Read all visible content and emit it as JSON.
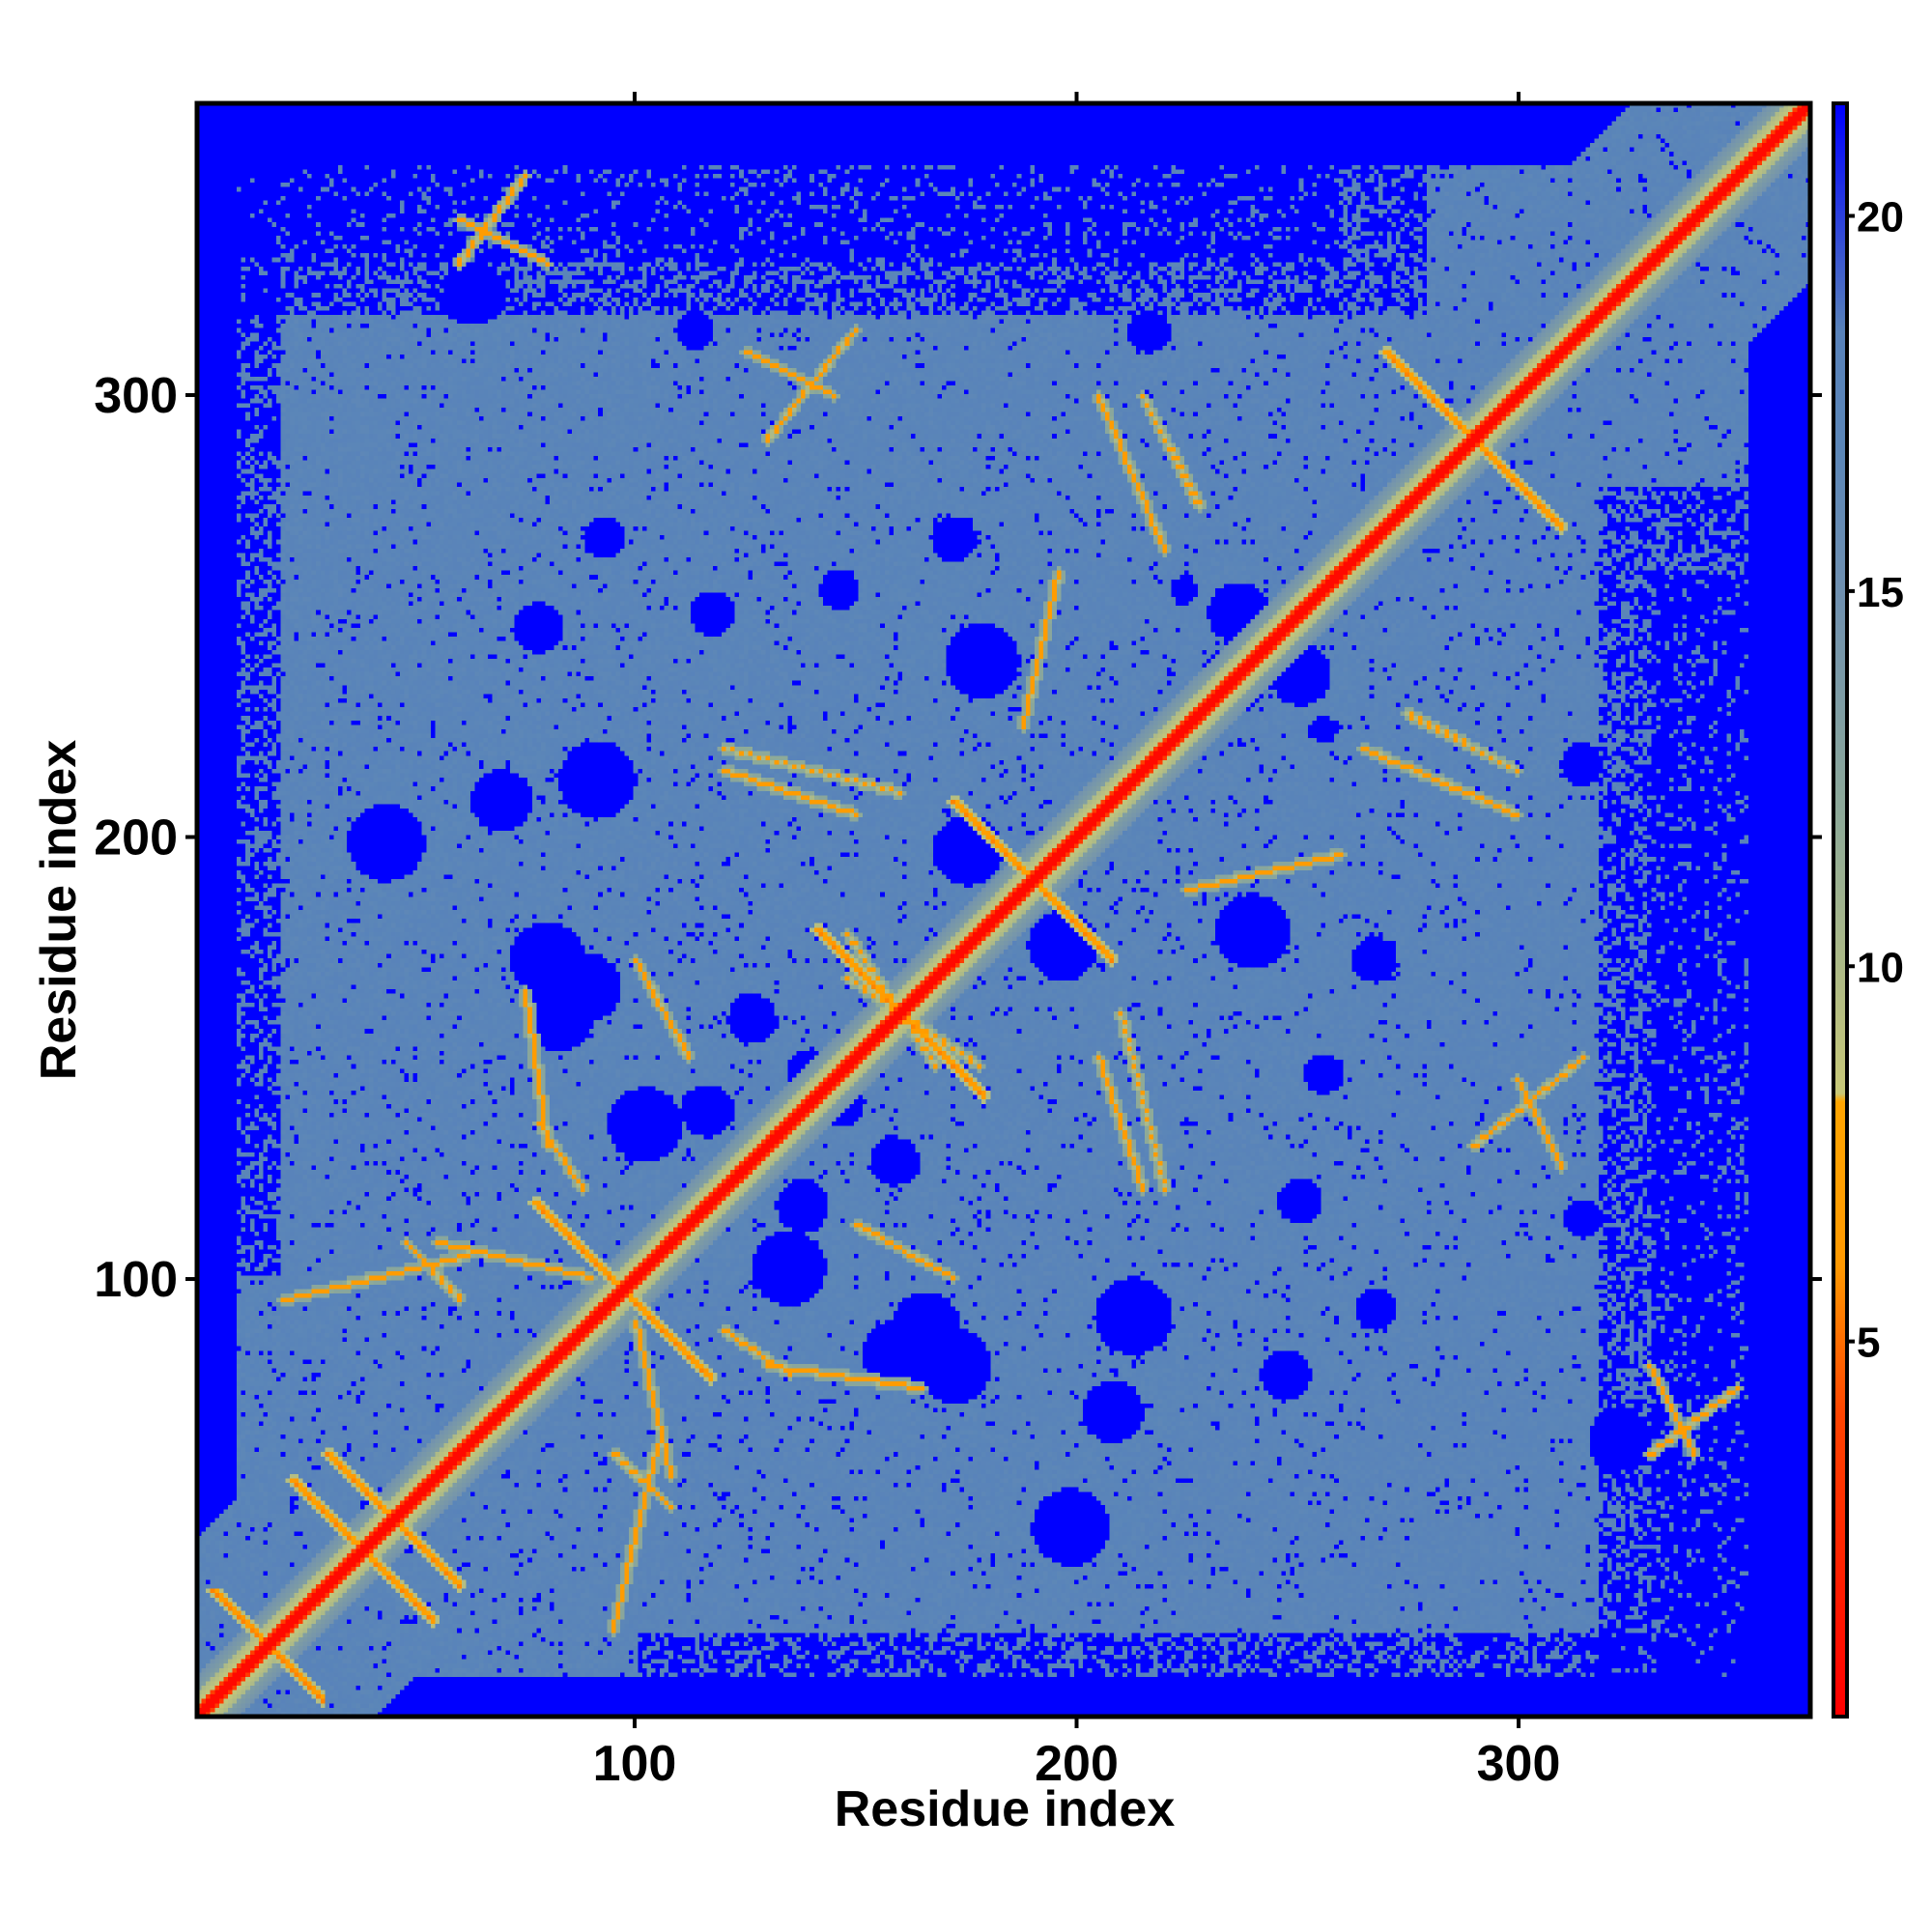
{
  "chart_data": {
    "type": "heatmap",
    "title": "",
    "xlabel": "Residue index",
    "ylabel": "Residue index",
    "xlim": [
      1,
      366
    ],
    "ylim": [
      1,
      366
    ],
    "x_ticks": [
      100,
      200,
      300
    ],
    "y_ticks": [
      100,
      200,
      300
    ],
    "colorbar": {
      "ticks": [
        5,
        10,
        15,
        20
      ],
      "range": [
        0,
        21.5
      ],
      "stops": [
        {
          "value": 0,
          "color": "#ff0000"
        },
        {
          "value": 4,
          "color": "#ff4400"
        },
        {
          "value": 6,
          "color": "#ff9900"
        },
        {
          "value": 8.2,
          "color": "#ffa500"
        },
        {
          "value": 8.3,
          "color": "#c8c878"
        },
        {
          "value": 12,
          "color": "#8eaa98"
        },
        {
          "value": 15,
          "color": "#6f90b0"
        },
        {
          "value": 17,
          "color": "#5b86b8"
        },
        {
          "value": 18.5,
          "color": "#5882ba"
        },
        {
          "value": 21.5,
          "color": "#0000ff"
        }
      ]
    },
    "colors": {
      "far": "#0000ff",
      "mid": "#5a87ba",
      "contact": "#ff9900",
      "close": "#ff0000"
    },
    "diagonal_width_residues": 3,
    "contact_features": [
      {
        "type": "antiparallel",
        "center": [
          16,
          17
        ],
        "length": 24
      },
      {
        "type": "antiparallel",
        "center": [
          38,
          38
        ],
        "length": 32
      },
      {
        "type": "antiparallel",
        "center": [
          45,
          45
        ],
        "length": 30
      },
      {
        "type": "antiparallel",
        "center": [
          97,
          97
        ],
        "length": 40
      },
      {
        "type": "antiparallel",
        "center": [
          160,
          160
        ],
        "length": 38
      },
      {
        "type": "antiparallel",
        "center": [
          190,
          190
        ],
        "length": 36
      },
      {
        "type": "antiparallel",
        "center": [
          290,
          290
        ],
        "length": 40
      },
      {
        "type": "parallel",
        "from": [
          20,
          95
        ],
        "to": [
          62,
          105
        ]
      },
      {
        "type": "parallel",
        "from": [
          55,
          108
        ],
        "to": [
          90,
          100
        ]
      },
      {
        "type": "parallel",
        "from": [
          95,
          60
        ],
        "to": [
          108,
          48
        ]
      },
      {
        "type": "parallel",
        "from": [
          88,
          120
        ],
        "to": [
          78,
          135
        ]
      },
      {
        "type": "parallel",
        "from": [
          120,
          215
        ],
        "to": [
          150,
          205
        ]
      },
      {
        "type": "parallel",
        "from": [
          148,
          178
        ],
        "to": [
          168,
          148
        ]
      },
      {
        "type": "parallel",
        "from": [
          150,
          112
        ],
        "to": [
          172,
          100
        ]
      },
      {
        "type": "parallel",
        "from": [
          210,
          160
        ],
        "to": [
          220,
          120
        ]
      },
      {
        "type": "parallel",
        "from": [
          215,
          300
        ],
        "to": [
          228,
          275
        ]
      },
      {
        "type": "parallel",
        "from": [
          225,
          188
        ],
        "to": [
          260,
          196
        ]
      },
      {
        "type": "parallel",
        "from": [
          265,
          220
        ],
        "to": [
          300,
          205
        ]
      },
      {
        "type": "parallel",
        "from": [
          290,
          130
        ],
        "to": [
          315,
          150
        ]
      },
      {
        "type": "parallel",
        "from": [
          330,
          60
        ],
        "to": [
          350,
          75
        ]
      },
      {
        "type": "parallel",
        "from": [
          60,
          340
        ],
        "to": [
          80,
          330
        ]
      },
      {
        "type": "parallel",
        "from": [
          125,
          310
        ],
        "to": [
          145,
          300
        ]
      },
      {
        "type": "parallel",
        "from": [
          130,
          80
        ],
        "to": [
          165,
          75
        ]
      }
    ]
  }
}
